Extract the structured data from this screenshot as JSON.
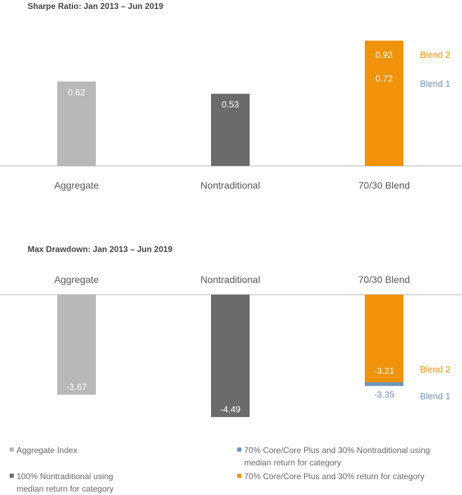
{
  "chart_data": [
    {
      "type": "bar",
      "title": "Sharpe Ratio: Jan 2013 – Jun 2019",
      "categories": [
        "Aggregate",
        "Nontraditional",
        "70/30 Blend"
      ],
      "series": [
        {
          "name": "Aggregate Index",
          "values": [
            0.62,
            null,
            null
          ],
          "labels": [
            "0.62",
            "",
            ""
          ]
        },
        {
          "name": "100% Nontraditional using median return for category",
          "values": [
            null,
            0.53,
            null
          ],
          "labels": [
            "",
            "0.53",
            ""
          ]
        },
        {
          "name": "70% Core/Core Plus and 30% Nontraditional using median return for category",
          "values": [
            null,
            null,
            0.72
          ],
          "labels": [
            "",
            "",
            "0.72"
          ]
        },
        {
          "name": "70% Core/Core Plus and 30% return for category",
          "values": [
            null,
            null,
            0.92
          ],
          "labels": [
            "",
            "",
            "0.92"
          ]
        }
      ],
      "annotations": {
        "blend1": "Blend 1",
        "blend2": "Blend 2"
      },
      "ylim": [
        0,
        1.0
      ],
      "grid": false
    },
    {
      "type": "bar",
      "title": "Max Drawdown: Jan 2013 – Jun 2019",
      "categories": [
        "Aggregate",
        "Nontraditional",
        "70/30 Blend"
      ],
      "series": [
        {
          "name": "Aggregate Index",
          "values": [
            -3.67,
            null,
            null
          ],
          "labels": [
            "-3.67",
            "",
            ""
          ]
        },
        {
          "name": "100% Nontraditional using median return for category",
          "values": [
            null,
            -4.49,
            null
          ],
          "labels": [
            "",
            "-4.49",
            ""
          ]
        },
        {
          "name": "70% Core/Core Plus and 30% Nontraditional using median return for category",
          "values": [
            null,
            null,
            -3.35
          ],
          "labels": [
            "",
            "",
            "-3.35"
          ]
        },
        {
          "name": "70% Core/Core Plus and 30% return for category",
          "values": [
            null,
            null,
            -3.21
          ],
          "labels": [
            "",
            "",
            "-3.21"
          ]
        }
      ],
      "annotations": {
        "blend1": "Blend 1",
        "blend2": "Blend 2"
      },
      "ylim": [
        -4.8,
        0
      ],
      "grid": false
    }
  ],
  "colors": {
    "aggregate": "#b8b8b8",
    "nontraditional": "#6b6b6b",
    "blend1": "#7393bd",
    "blend2": "#f0920a",
    "axis": "#b0b0b0",
    "title": "#444444",
    "category": "#555555"
  },
  "legend": [
    {
      "label": "Aggregate Index",
      "color": "#b8b8b8"
    },
    {
      "label": "100% Nontraditional using median return for category",
      "color": "#6b6b6b"
    },
    {
      "label": "70% Core/Core Plus and 30% Nontraditional using median return for category",
      "color": "#7393bd"
    },
    {
      "label": "70% Core/Core Plus and 30% return for category",
      "color": "#f0920a"
    }
  ]
}
